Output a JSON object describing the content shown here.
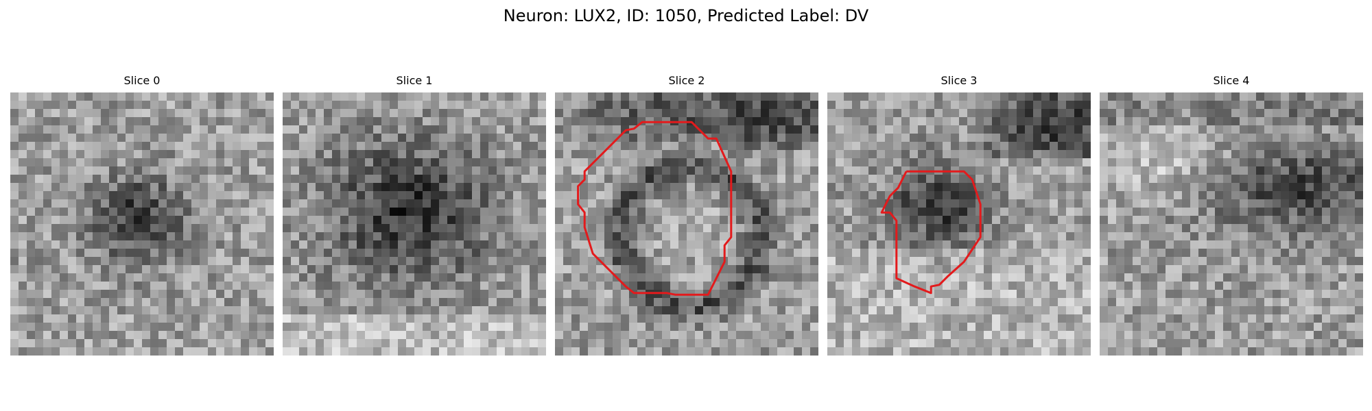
{
  "figure": {
    "title": "Neuron: LUX2, ID: 1050, Predicted Label: DV"
  },
  "panels": [
    {
      "title": "Slice 0",
      "has_contour": false
    },
    {
      "title": "Slice 1",
      "has_contour": false
    },
    {
      "title": "Slice 2",
      "has_contour": true
    },
    {
      "title": "Slice 3",
      "has_contour": true
    },
    {
      "title": "Slice 4",
      "has_contour": false
    }
  ],
  "colors": {
    "contour": "#e31a1c",
    "colormap": "grayscale"
  }
}
